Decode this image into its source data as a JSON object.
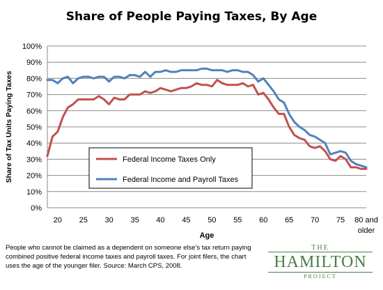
{
  "chart_data": {
    "type": "line",
    "title": "Share of People Paying Taxes, By Age",
    "xlabel": "Age",
    "ylabel": "Share of Tax Units Paying Taxes",
    "x": [
      18,
      19,
      20,
      21,
      22,
      23,
      24,
      25,
      26,
      27,
      28,
      29,
      30,
      31,
      32,
      33,
      34,
      35,
      36,
      37,
      38,
      39,
      40,
      41,
      42,
      43,
      44,
      45,
      46,
      47,
      48,
      49,
      50,
      51,
      52,
      53,
      54,
      55,
      56,
      57,
      58,
      59,
      60,
      61,
      62,
      63,
      64,
      65,
      66,
      67,
      68,
      69,
      70,
      71,
      72,
      73,
      74,
      75,
      76,
      77,
      78,
      79,
      80
    ],
    "x_ticks": [
      "20",
      "25",
      "30",
      "35",
      "40",
      "45",
      "50",
      "55",
      "60",
      "65",
      "70",
      "75",
      "80 and older"
    ],
    "y_ticks": [
      "0%",
      "10%",
      "20%",
      "30%",
      "40%",
      "50%",
      "60%",
      "70%",
      "80%",
      "90%",
      "100%"
    ],
    "ylim": [
      0,
      100
    ],
    "grid": true,
    "series": [
      {
        "name": "Federal Income Taxes Only",
        "color": "#c0504d",
        "values": [
          32,
          44,
          47,
          56,
          62,
          64,
          67,
          67,
          67,
          67,
          69,
          67,
          64,
          68,
          67,
          67,
          70,
          70,
          70,
          72,
          71,
          72,
          74,
          73,
          72,
          73,
          74,
          74,
          75,
          77,
          76,
          76,
          75,
          79,
          77,
          76,
          76,
          76,
          77,
          75,
          76,
          70,
          71,
          67,
          62,
          58,
          58,
          50,
          45,
          43,
          42,
          38,
          37,
          38,
          35,
          30,
          29,
          32,
          30,
          25,
          25,
          24,
          24
        ]
      },
      {
        "name": "Federal Income and Payroll Taxes",
        "color": "#4f81bd",
        "values": [
          79,
          79,
          77,
          80,
          81,
          77,
          80,
          81,
          81,
          80,
          81,
          81,
          78,
          81,
          81,
          80,
          82,
          82,
          81,
          84,
          81,
          84,
          84,
          85,
          84,
          84,
          85,
          85,
          85,
          85,
          86,
          86,
          85,
          85,
          85,
          84,
          85,
          85,
          84,
          84,
          82,
          78,
          80,
          76,
          72,
          67,
          65,
          58,
          53,
          50,
          48,
          45,
          44,
          42,
          40,
          33,
          34,
          35,
          34,
          29,
          27,
          26,
          25
        ]
      }
    ],
    "legend_position": "center",
    "note": "People who cannot be claimed as a dependent on someone else's tax return paying combined positive federal income taxes and payroll taxes. For joint filers, the chart uses the age of the younger filer. Source: March CPS, 2008.",
    "logo": {
      "top": "THE",
      "name": "HAMILTON",
      "bottom": "PROJECT",
      "color": "#4a7d4a"
    }
  }
}
